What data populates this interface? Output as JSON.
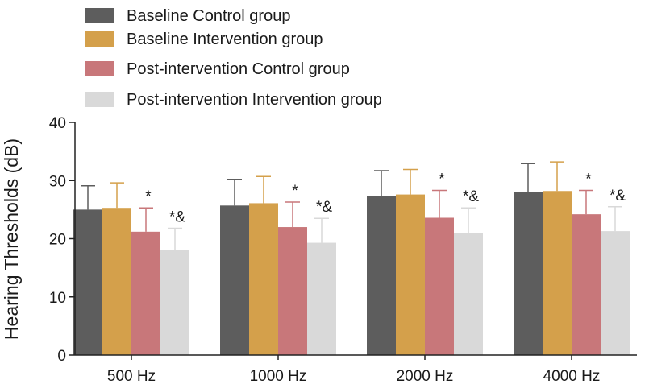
{
  "chart_data": {
    "type": "bar",
    "title": "",
    "xlabel": "",
    "ylabel": "Hearing Thresholds (dB)",
    "ylim": [
      0,
      40
    ],
    "yticks": [
      0,
      10,
      20,
      30,
      40
    ],
    "legend_position": "top-left",
    "grid": false,
    "categories": [
      "500 Hz",
      "1000 Hz",
      "2000 Hz",
      "4000 Hz"
    ],
    "series": [
      {
        "name": "Baseline Control group",
        "color": "#5d5d5d",
        "values": [
          25.0,
          25.7,
          27.3,
          28.0
        ],
        "errors": [
          4.1,
          4.5,
          4.4,
          4.9
        ],
        "annotations": [
          "",
          "",
          "",
          ""
        ]
      },
      {
        "name": "Baseline Intervention group",
        "color": "#d4a04b",
        "values": [
          25.3,
          26.1,
          27.6,
          28.2
        ],
        "errors": [
          4.3,
          4.6,
          4.3,
          5.0
        ],
        "annotations": [
          "",
          "",
          "",
          ""
        ]
      },
      {
        "name": "Post-intervention Control group",
        "color": "#c8777a",
        "values": [
          21.2,
          22.0,
          23.6,
          24.2
        ],
        "errors": [
          4.1,
          4.3,
          4.7,
          4.1
        ],
        "annotations": [
          "*",
          "*",
          "*",
          "*"
        ]
      },
      {
        "name": "Post-intervention Intervention group",
        "color": "#d9d9d9",
        "values": [
          18.0,
          19.3,
          20.9,
          21.3
        ],
        "errors": [
          3.8,
          4.2,
          4.4,
          4.2
        ],
        "annotations": [
          "*&",
          "*&",
          "*&",
          "*&"
        ]
      }
    ]
  }
}
